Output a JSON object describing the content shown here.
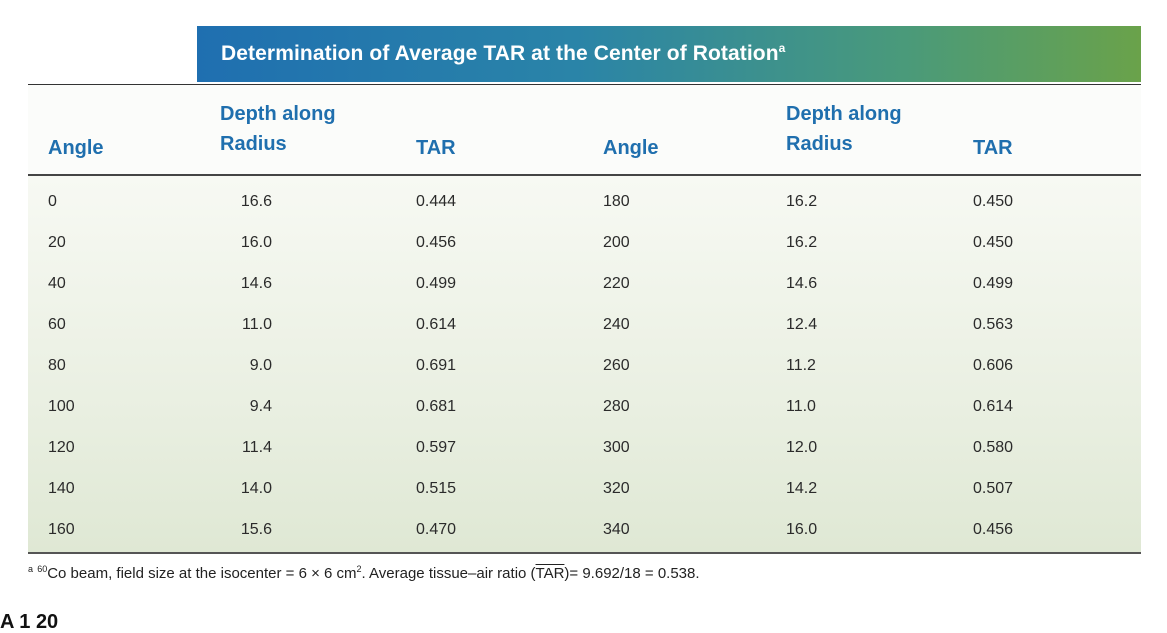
{
  "table": {
    "title": "Determination of Average TAR at the Center of Rotation",
    "title_sup": "a",
    "headers": {
      "angle": "Angle",
      "depth_line1": "Depth along",
      "depth_line2": "Radius",
      "tar": "TAR"
    },
    "rows": [
      {
        "angle_l": "0",
        "depth_l": "16.6",
        "tar_l": "0.444",
        "angle_r": "180",
        "depth_r": "16.2",
        "tar_r": "0.450"
      },
      {
        "angle_l": "20",
        "depth_l": "16.0",
        "tar_l": "0.456",
        "angle_r": "200",
        "depth_r": "16.2",
        "tar_r": "0.450"
      },
      {
        "angle_l": "40",
        "depth_l": "14.6",
        "tar_l": "0.499",
        "angle_r": "220",
        "depth_r": "14.6",
        "tar_r": "0.499"
      },
      {
        "angle_l": "60",
        "depth_l": "11.0",
        "tar_l": "0.614",
        "angle_r": "240",
        "depth_r": "12.4",
        "tar_r": "0.563"
      },
      {
        "angle_l": "80",
        "depth_l": "9.0",
        "tar_l": "0.691",
        "angle_r": "260",
        "depth_r": "11.2",
        "tar_r": "0.606"
      },
      {
        "angle_l": "100",
        "depth_l": "9.4",
        "tar_l": "0.681",
        "angle_r": "280",
        "depth_r": "11.0",
        "tar_r": "0.614"
      },
      {
        "angle_l": "120",
        "depth_l": "11.4",
        "tar_l": "0.597",
        "angle_r": "300",
        "depth_r": "12.0",
        "tar_r": "0.580"
      },
      {
        "angle_l": "140",
        "depth_l": "14.0",
        "tar_l": "0.515",
        "angle_r": "320",
        "depth_r": "14.2",
        "tar_r": "0.507"
      },
      {
        "angle_l": "160",
        "depth_l": "15.6",
        "tar_l": "0.470",
        "angle_r": "340",
        "depth_r": "16.0",
        "tar_r": "0.456"
      }
    ]
  },
  "footnote": {
    "marker": "a",
    "isotope_mass": "60",
    "text_1": "Co beam, field size at the isocenter = 6 × 6 cm",
    "text_sup": "2",
    "text_2": ". Average tissue–air ratio (",
    "tar_abbr": "TAR",
    "text_3": ")= 9.692/18 = 0.538."
  },
  "cutoff_text": "A 1 20",
  "colors": {
    "header_text": "#1f6fae",
    "title_gradient_start": "#1f6fb0",
    "title_gradient_end": "#6aa24a"
  }
}
